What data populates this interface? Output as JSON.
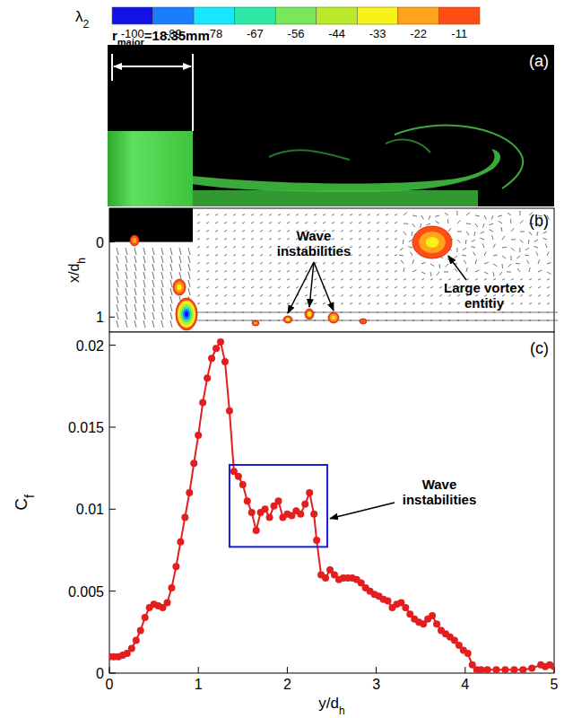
{
  "colorbar": {
    "label": "λ2",
    "ticks": [
      -100,
      -89,
      -78,
      -67,
      -56,
      -44,
      -33,
      -22,
      -11
    ],
    "colors": [
      "#1212e8",
      "#1a7dff",
      "#16e8ff",
      "#2ee8a6",
      "#7ae65a",
      "#b8ea2a",
      "#f6f21a",
      "#ffa41a",
      "#ff4e14"
    ]
  },
  "panel_a": {
    "letter": "(a)",
    "dimension": "rmajor=18.35mm"
  },
  "panel_b": {
    "letter": "(b)",
    "ylabel": "x/dh",
    "ylim": [
      -0.45,
      1.2
    ],
    "yticks": [
      0,
      1
    ],
    "annotations": [
      "Wave instabilities",
      "Large vortex entitiy"
    ]
  },
  "chart_data": {
    "type": "line",
    "letter": "(c)",
    "xlabel": "y/dh",
    "ylabel": "Cf",
    "xlim": [
      0,
      5
    ],
    "xticks": [
      0,
      1,
      2,
      3,
      4,
      5
    ],
    "ylim": [
      0,
      0.0208
    ],
    "yticks": [
      0,
      0.005,
      0.01,
      0.015,
      0.02
    ],
    "color": "#e41e1e",
    "marker": "circle",
    "line_style": "solid",
    "x": [
      0,
      0.05,
      0.1,
      0.15,
      0.2,
      0.25,
      0.3,
      0.35,
      0.4,
      0.45,
      0.5,
      0.55,
      0.6,
      0.65,
      0.7,
      0.75,
      0.8,
      0.85,
      0.9,
      0.95,
      1.0,
      1.05,
      1.1,
      1.15,
      1.2,
      1.25,
      1.3,
      1.35,
      1.4,
      1.45,
      1.5,
      1.55,
      1.6,
      1.65,
      1.7,
      1.75,
      1.8,
      1.85,
      1.9,
      1.95,
      2.0,
      2.05,
      2.1,
      2.15,
      2.2,
      2.25,
      2.3,
      2.33,
      2.38,
      2.43,
      2.48,
      2.53,
      2.58,
      2.63,
      2.68,
      2.73,
      2.78,
      2.83,
      2.88,
      2.93,
      2.98,
      3.03,
      3.08,
      3.13,
      3.18,
      3.23,
      3.28,
      3.33,
      3.38,
      3.43,
      3.48,
      3.53,
      3.58,
      3.63,
      3.68,
      3.73,
      3.78,
      3.83,
      3.88,
      3.93,
      3.98,
      4.03,
      4.08,
      4.13,
      4.18,
      4.25,
      4.35,
      4.45,
      4.55,
      4.65,
      4.75,
      4.85,
      4.9,
      4.95,
      5.0
    ],
    "values": [
      0.001,
      0.001,
      0.001,
      0.0011,
      0.0012,
      0.0015,
      0.002,
      0.0026,
      0.0034,
      0.004,
      0.0042,
      0.0041,
      0.004,
      0.0043,
      0.0052,
      0.0065,
      0.008,
      0.0095,
      0.011,
      0.0128,
      0.0145,
      0.0165,
      0.018,
      0.0192,
      0.0198,
      0.0202,
      0.019,
      0.016,
      0.0123,
      0.012,
      0.0115,
      0.0105,
      0.0098,
      0.0087,
      0.0098,
      0.01,
      0.0095,
      0.0102,
      0.0105,
      0.0095,
      0.0097,
      0.0096,
      0.0099,
      0.0097,
      0.0103,
      0.011,
      0.0097,
      0.0081,
      0.006,
      0.0058,
      0.0063,
      0.006,
      0.0057,
      0.0058,
      0.0058,
      0.0058,
      0.0057,
      0.0055,
      0.0052,
      0.005,
      0.0048,
      0.0047,
      0.0045,
      0.0044,
      0.004,
      0.0042,
      0.0043,
      0.004,
      0.0036,
      0.0033,
      0.0031,
      0.003,
      0.0033,
      0.0035,
      0.003,
      0.0026,
      0.0024,
      0.0022,
      0.002,
      0.0017,
      0.0014,
      0.0012,
      0.0005,
      0.0002,
      0.0002,
      0.0002,
      0.0002,
      0.0002,
      0.0002,
      0.0002,
      0.0003,
      0.0005,
      0.0004,
      0.0005,
      0.0004
    ],
    "annotation": {
      "text": "Wave instabilities",
      "box": {
        "x": [
          1.35,
          2.45
        ],
        "y": [
          0.0077,
          0.0127
        ]
      }
    }
  }
}
